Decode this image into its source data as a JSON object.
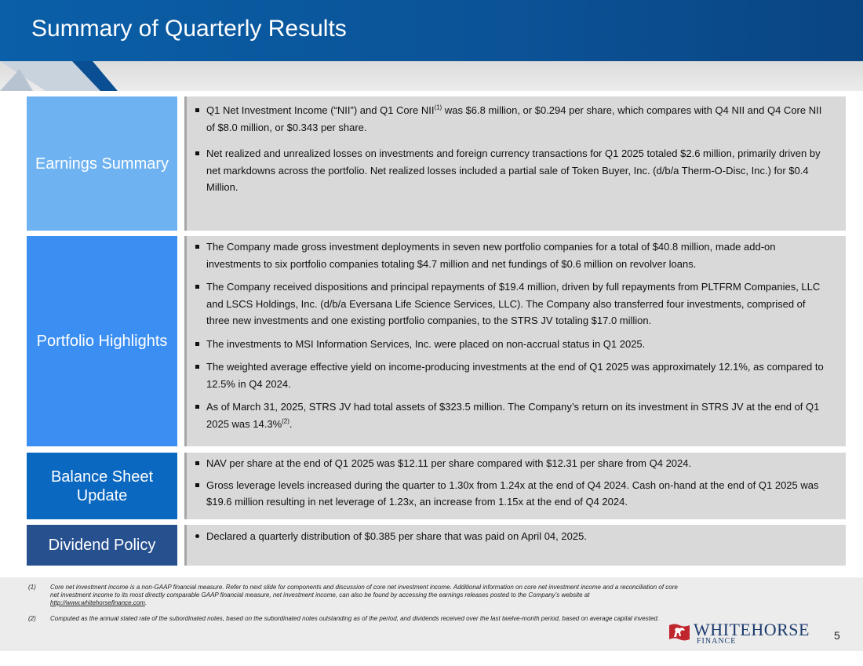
{
  "header": {
    "title": "Summary of Quarterly Results"
  },
  "colors": {
    "header_blue": "#0b5296",
    "earnings_label": "#6eb2f2",
    "portfolio_label": "#3c8ff2",
    "balance_label": "#0a68c0",
    "dividend_label": "#27508f",
    "content_bg": "#d9d9d9"
  },
  "sections": {
    "earnings": {
      "label": "Earnings Summary",
      "bullets": {
        "b1_part1": "Q1 Net Investment Income (“NII”) and Q1 Core NII",
        "b1_sup": "(1)",
        "b1_part2": " was $6.8 million, or $0.294 per share, which compares with Q4 NII and Q4 Core NII of $8.0 million, or $0.343 per share.",
        "b2": "Net realized and unrealized losses on investments and foreign currency transactions for Q1 2025 totaled $2.6 million, primarily driven by net markdowns across the portfolio. Net realized losses included a partial sale of Token Buyer, Inc. (d/b/a Therm-O-Disc, Inc.) for $0.4 Million."
      }
    },
    "portfolio": {
      "label": "Portfolio Highlights",
      "bullets": {
        "b1": "The Company made gross investment deployments in seven new portfolio companies for a total of $40.8 million, made add-on investments to six portfolio companies totaling $4.7 million and net fundings of $0.6 million on revolver loans.",
        "b2": "The Company received dispositions and principal repayments of $19.4 million, driven by full repayments from PLTFRM Companies, LLC and LSCS Holdings, Inc. (d/b/a Eversana Life Science Services, LLC). The Company also transferred four investments, comprised of three new investments and one existing portfolio companies, to the STRS JV totaling $17.0 million.",
        "b3": "The investments to MSI Information Services, Inc. were placed on non-accrual status in Q1 2025.",
        "b4": "The weighted average effective yield on income-producing investments at the end of Q1 2025 was approximately 12.1%, as compared to 12.5% in Q4 2024.",
        "b5_part1": "As of March 31, 2025, STRS JV had total assets of $323.5 million. The Company’s return on its investment in STRS JV at the end of Q1 2025 was 14.3%",
        "b5_sup": "(2)",
        "b5_part2": "."
      }
    },
    "balance": {
      "label_line1": "Balance Sheet",
      "label_line2": "Update",
      "bullets": {
        "b1": "NAV per share at the end of Q1 2025 was $12.11 per share compared with $12.31 per share from Q4 2024.",
        "b2": "Gross leverage levels increased during the quarter to 1.30x from 1.24x at the end of Q4 2024. Cash on-hand at the end of Q1 2025 was $19.6 million resulting in net leverage of 1.23x, an increase from 1.15x at the end of Q4 2024."
      }
    },
    "dividend": {
      "label": "Dividend Policy",
      "bullets": {
        "b1": "Declared a quarterly distribution of $0.385 per share that was paid on April 04, 2025."
      }
    }
  },
  "footnotes": {
    "fn1": {
      "num": "(1)",
      "text": "Core net investment income is a non-GAAP financial measure. Refer to next slide for components and discussion of core net investment income. Additional information on core net investment income and a reconciliation of core net investment income to its most directly comparable GAAP financial measure, net investment income, can also be found by accessing the earnings releases posted to the Company’s website at ",
      "link": "http://www.whitehorsefinance.com",
      "end": "."
    },
    "fn2": {
      "num": "(2)",
      "text": "Computed as the annual stated rate of the subordinated notes, based on the subordinated notes outstanding as of the period, and dividends received over the last twelve-month period, based on average capital invested."
    }
  },
  "logo": {
    "name": "WHITEHORSE",
    "sub": "FINANCE",
    "icon": "horse-flag-icon"
  },
  "page_number": "5"
}
